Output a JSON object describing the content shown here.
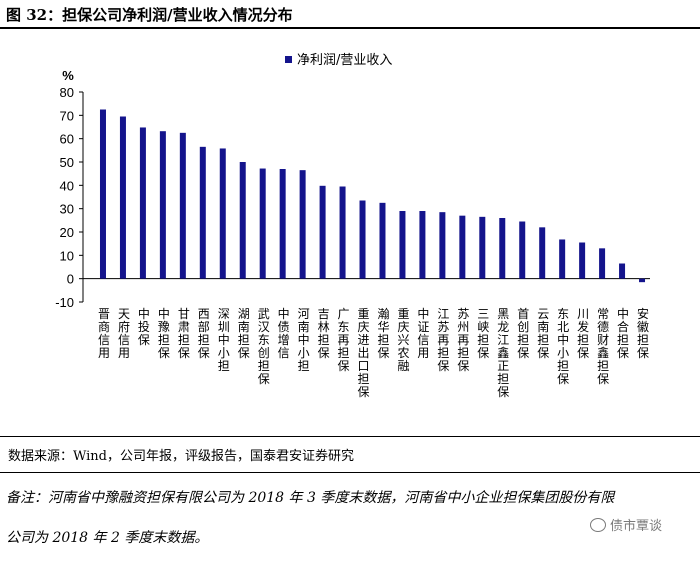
{
  "figure_title": "图 32：担保公司净利润/营业收入情况分布",
  "source_text": "数据来源：Wind，公司年报，评级报告，国泰君安证券研究",
  "note_line1": "备注：河南省中豫融资担保有限公司为 2018 年 3 季度末数据，河南省中小企业担保集团股份有限",
  "note_line2": "公司为 2018 年 2 季度末数据。",
  "watermark": "债市覃谈",
  "chart_data": {
    "type": "bar",
    "unit_label": "%",
    "ylim": [
      -10,
      80
    ],
    "yticks": [
      -10,
      0,
      10,
      20,
      30,
      40,
      50,
      60,
      70,
      80
    ],
    "grid": false,
    "legend_position": "top-center",
    "bar_color": "#14148c",
    "categories": [
      "晋商信用",
      "天府信用",
      "中投保",
      "中豫担保",
      "甘肃担保",
      "西部担保",
      "深圳中小担",
      "湖南担保",
      "武汉东创担保",
      "中债增信",
      "河南中小担",
      "吉林担保",
      "广东再担保",
      "重庆进出口担保",
      "瀚华担保",
      "重庆兴农融",
      "中证信用",
      "江苏再担保",
      "苏州再担保",
      "三峡担保",
      "黑龙江鑫正担保",
      "首创担保",
      "云南担保",
      "东北中小担保",
      "川发担保",
      "常德财鑫担保",
      "中合担保",
      "安徽担保"
    ],
    "series": [
      {
        "name": "净利润/营业收入",
        "values": [
          72.5,
          69.5,
          64.8,
          63.2,
          62.5,
          56.5,
          55.8,
          50.0,
          47.2,
          47.0,
          46.5,
          39.8,
          39.5,
          33.5,
          32.5,
          29.0,
          29.0,
          28.5,
          27.0,
          26.5,
          26.0,
          24.5,
          22.0,
          16.8,
          15.5,
          13.0,
          6.5,
          -1.5
        ]
      }
    ]
  }
}
